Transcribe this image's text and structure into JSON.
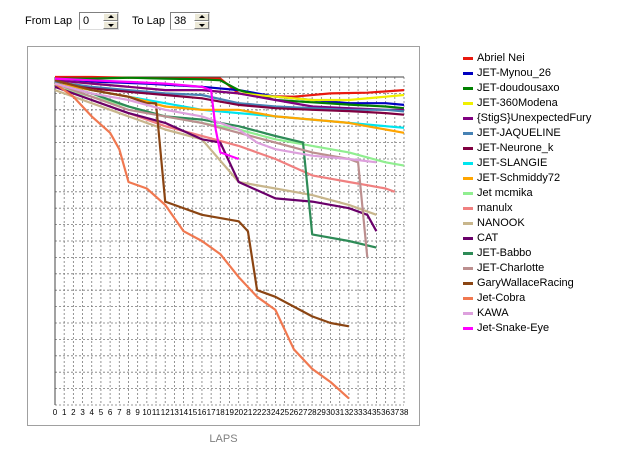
{
  "controls": {
    "from_label": "From Lap",
    "from_value": "0",
    "to_label": "To Lap",
    "to_value": "38"
  },
  "chart_data": {
    "type": "line",
    "xlabel": "LAPS",
    "ylabel": "",
    "title": "",
    "x": [
      0,
      1,
      2,
      3,
      4,
      5,
      6,
      7,
      8,
      9,
      10,
      11,
      12,
      13,
      14,
      15,
      16,
      17,
      18,
      19,
      20,
      21,
      22,
      23,
      24,
      25,
      26,
      27,
      28,
      29,
      30,
      31,
      32,
      33,
      34,
      35,
      36,
      37,
      38
    ],
    "xlim": [
      0,
      38
    ],
    "ylim": [
      0,
      100
    ],
    "grid": true,
    "legend_position": "right",
    "series": [
      {
        "name": "Abriel Nei",
        "color": "#e8190f",
        "values": [
          [
            0,
            100
          ],
          [
            4,
            100
          ],
          [
            8,
            99.8
          ],
          [
            12,
            99.6
          ],
          [
            16,
            99.6
          ],
          [
            18,
            99.5
          ],
          [
            20,
            95
          ],
          [
            22,
            94.2
          ],
          [
            26,
            94
          ],
          [
            30,
            95
          ],
          [
            34,
            95.2
          ],
          [
            38,
            96
          ]
        ]
      },
      {
        "name": "JET-Mynou_26",
        "color": "#0000c0",
        "values": [
          [
            0,
            99
          ],
          [
            5,
            98.5
          ],
          [
            10,
            98
          ],
          [
            16,
            97
          ],
          [
            20,
            96
          ],
          [
            24,
            94
          ],
          [
            28,
            93
          ],
          [
            32,
            92
          ],
          [
            36,
            92
          ],
          [
            38,
            91.5
          ]
        ]
      },
      {
        "name": "JET-doudousaxo",
        "color": "#008000",
        "values": [
          [
            0,
            99.5
          ],
          [
            4,
            99.5
          ],
          [
            8,
            99.8
          ],
          [
            12,
            99.5
          ],
          [
            16,
            99.3
          ],
          [
            18,
            99
          ],
          [
            20,
            96
          ],
          [
            24,
            93
          ],
          [
            28,
            92.3
          ],
          [
            32,
            91.6
          ],
          [
            36,
            91
          ],
          [
            38,
            90.5
          ]
        ]
      },
      {
        "name": "JET-360Modena",
        "color": "#f0f000",
        "values": [
          [
            0,
            99
          ],
          [
            4,
            98
          ],
          [
            8,
            97
          ],
          [
            12,
            96
          ],
          [
            16,
            96
          ],
          [
            20,
            95
          ],
          [
            24,
            94
          ],
          [
            28,
            93
          ],
          [
            32,
            93
          ],
          [
            36,
            94
          ],
          [
            38,
            94.5
          ]
        ]
      },
      {
        "name": "{StigS}UnexpectedFury",
        "color": "#800080",
        "values": [
          [
            0,
            99
          ],
          [
            4,
            98
          ],
          [
            8,
            97
          ],
          [
            12,
            96
          ],
          [
            16,
            96
          ],
          [
            20,
            95
          ],
          [
            24,
            93
          ],
          [
            28,
            91
          ],
          [
            32,
            90.5
          ],
          [
            36,
            90
          ],
          [
            38,
            90
          ]
        ]
      },
      {
        "name": "JET-JAQUELINE",
        "color": "#4682b4",
        "values": [
          [
            0,
            98.5
          ],
          [
            4,
            97
          ],
          [
            8,
            96
          ],
          [
            12,
            95
          ],
          [
            16,
            94.5
          ],
          [
            20,
            92
          ],
          [
            24,
            91
          ],
          [
            28,
            90.5
          ],
          [
            32,
            90
          ],
          [
            36,
            90
          ],
          [
            38,
            89.5
          ]
        ]
      },
      {
        "name": "JET-Neurone_k",
        "color": "#800040",
        "values": [
          [
            0,
            98
          ],
          [
            4,
            96.5
          ],
          [
            8,
            95.5
          ],
          [
            12,
            94.5
          ],
          [
            16,
            93.5
          ],
          [
            20,
            91.5
          ],
          [
            24,
            90.5
          ],
          [
            28,
            90
          ],
          [
            32,
            89.6
          ],
          [
            36,
            89
          ],
          [
            38,
            88.5
          ]
        ]
      },
      {
        "name": "JET-SLANGIE",
        "color": "#00e5ee",
        "values": [
          [
            0,
            98
          ],
          [
            4,
            96
          ],
          [
            8,
            94
          ],
          [
            12,
            92
          ],
          [
            16,
            90
          ],
          [
            20,
            89
          ],
          [
            24,
            88
          ],
          [
            28,
            87
          ],
          [
            32,
            86
          ],
          [
            36,
            85
          ],
          [
            38,
            84.5
          ]
        ]
      },
      {
        "name": "JET-Schmiddy72",
        "color": "#ffa500",
        "values": [
          [
            0,
            98
          ],
          [
            4,
            96
          ],
          [
            8,
            94
          ],
          [
            12,
            91
          ],
          [
            16,
            90
          ],
          [
            20,
            90
          ],
          [
            24,
            88
          ],
          [
            28,
            87
          ],
          [
            32,
            86
          ],
          [
            36,
            84
          ],
          [
            38,
            83
          ]
        ]
      },
      {
        "name": "Jet mcmika",
        "color": "#90ee90",
        "values": [
          [
            0,
            97
          ],
          [
            4,
            94
          ],
          [
            8,
            91
          ],
          [
            12,
            88
          ],
          [
            16,
            86
          ],
          [
            20,
            84
          ],
          [
            24,
            81
          ],
          [
            28,
            79
          ],
          [
            32,
            77
          ],
          [
            36,
            74
          ],
          [
            38,
            73
          ]
        ]
      },
      {
        "name": "manulx",
        "color": "#f08080",
        "values": [
          [
            0,
            97
          ],
          [
            4,
            93
          ],
          [
            8,
            89
          ],
          [
            12,
            85
          ],
          [
            16,
            82
          ],
          [
            20,
            79
          ],
          [
            24,
            75
          ],
          [
            28,
            70
          ],
          [
            30,
            69
          ],
          [
            32,
            68
          ],
          [
            34,
            67
          ],
          [
            36,
            66
          ],
          [
            37,
            65
          ]
        ]
      },
      {
        "name": "NANOOK",
        "color": "#c8b68c",
        "values": [
          [
            0,
            96
          ],
          [
            4,
            92
          ],
          [
            8,
            88
          ],
          [
            12,
            84
          ],
          [
            16,
            81
          ],
          [
            20,
            68
          ],
          [
            24,
            66
          ],
          [
            28,
            64
          ],
          [
            32,
            61
          ],
          [
            35,
            58
          ]
        ]
      },
      {
        "name": "CAT",
        "color": "#6a006a",
        "values": [
          [
            0,
            97
          ],
          [
            4,
            93
          ],
          [
            8,
            89
          ],
          [
            12,
            86
          ],
          [
            16,
            81
          ],
          [
            18,
            80
          ],
          [
            20,
            68
          ],
          [
            24,
            63
          ],
          [
            28,
            62
          ],
          [
            32,
            60
          ],
          [
            34,
            58
          ],
          [
            35,
            53
          ]
        ]
      },
      {
        "name": "JET-Babbo",
        "color": "#2e8b57",
        "values": [
          [
            0,
            98
          ],
          [
            4,
            95
          ],
          [
            8,
            91
          ],
          [
            12,
            88
          ],
          [
            16,
            87
          ],
          [
            20,
            85
          ],
          [
            24,
            82
          ],
          [
            27,
            80
          ],
          [
            28,
            52
          ],
          [
            32,
            50
          ],
          [
            35,
            48
          ]
        ]
      },
      {
        "name": "JET-Charlotte",
        "color": "#bc8f8f",
        "values": [
          [
            0,
            98
          ],
          [
            4,
            94
          ],
          [
            8,
            90
          ],
          [
            12,
            88
          ],
          [
            16,
            86
          ],
          [
            20,
            83
          ],
          [
            24,
            80
          ],
          [
            28,
            77
          ],
          [
            32,
            75
          ],
          [
            33,
            74
          ],
          [
            34,
            45
          ]
        ]
      },
      {
        "name": "GaryWallaceRacing",
        "color": "#8b4513",
        "values": [
          [
            0,
            99
          ],
          [
            4,
            96
          ],
          [
            8,
            94
          ],
          [
            10,
            92
          ],
          [
            11,
            92
          ],
          [
            12,
            62
          ],
          [
            16,
            58
          ],
          [
            20,
            56
          ],
          [
            21,
            53
          ],
          [
            22,
            35
          ],
          [
            24,
            33
          ],
          [
            26,
            30
          ],
          [
            28,
            27
          ],
          [
            30,
            25
          ],
          [
            32,
            24
          ]
        ]
      },
      {
        "name": "Jet-Cobra",
        "color": "#f07850",
        "values": [
          [
            0,
            98
          ],
          [
            2,
            94
          ],
          [
            4,
            88
          ],
          [
            6,
            83
          ],
          [
            7,
            78
          ],
          [
            8,
            68
          ],
          [
            10,
            66
          ],
          [
            12,
            61
          ],
          [
            14,
            53
          ],
          [
            16,
            50
          ],
          [
            18,
            46
          ],
          [
            20,
            39
          ],
          [
            22,
            33
          ],
          [
            24,
            29
          ],
          [
            26,
            17
          ],
          [
            28,
            11
          ],
          [
            30,
            7
          ],
          [
            32,
            2
          ]
        ]
      },
      {
        "name": "KAWA",
        "color": "#dda0dd",
        "values": [
          [
            0,
            98
          ],
          [
            4,
            95
          ],
          [
            8,
            93
          ],
          [
            12,
            90
          ],
          [
            16,
            88
          ],
          [
            20,
            84
          ],
          [
            22,
            80
          ],
          [
            24,
            78
          ],
          [
            28,
            76
          ],
          [
            32,
            75
          ],
          [
            35,
            74
          ]
        ]
      },
      {
        "name": "Jet-Snake-Eye",
        "color": "#ff00ff",
        "values": [
          [
            0,
            99.5
          ],
          [
            4,
            99
          ],
          [
            8,
            98.5
          ],
          [
            12,
            98
          ],
          [
            16,
            97
          ],
          [
            17,
            96
          ],
          [
            17.5,
            84
          ],
          [
            18,
            77
          ],
          [
            20,
            75
          ]
        ]
      }
    ]
  }
}
